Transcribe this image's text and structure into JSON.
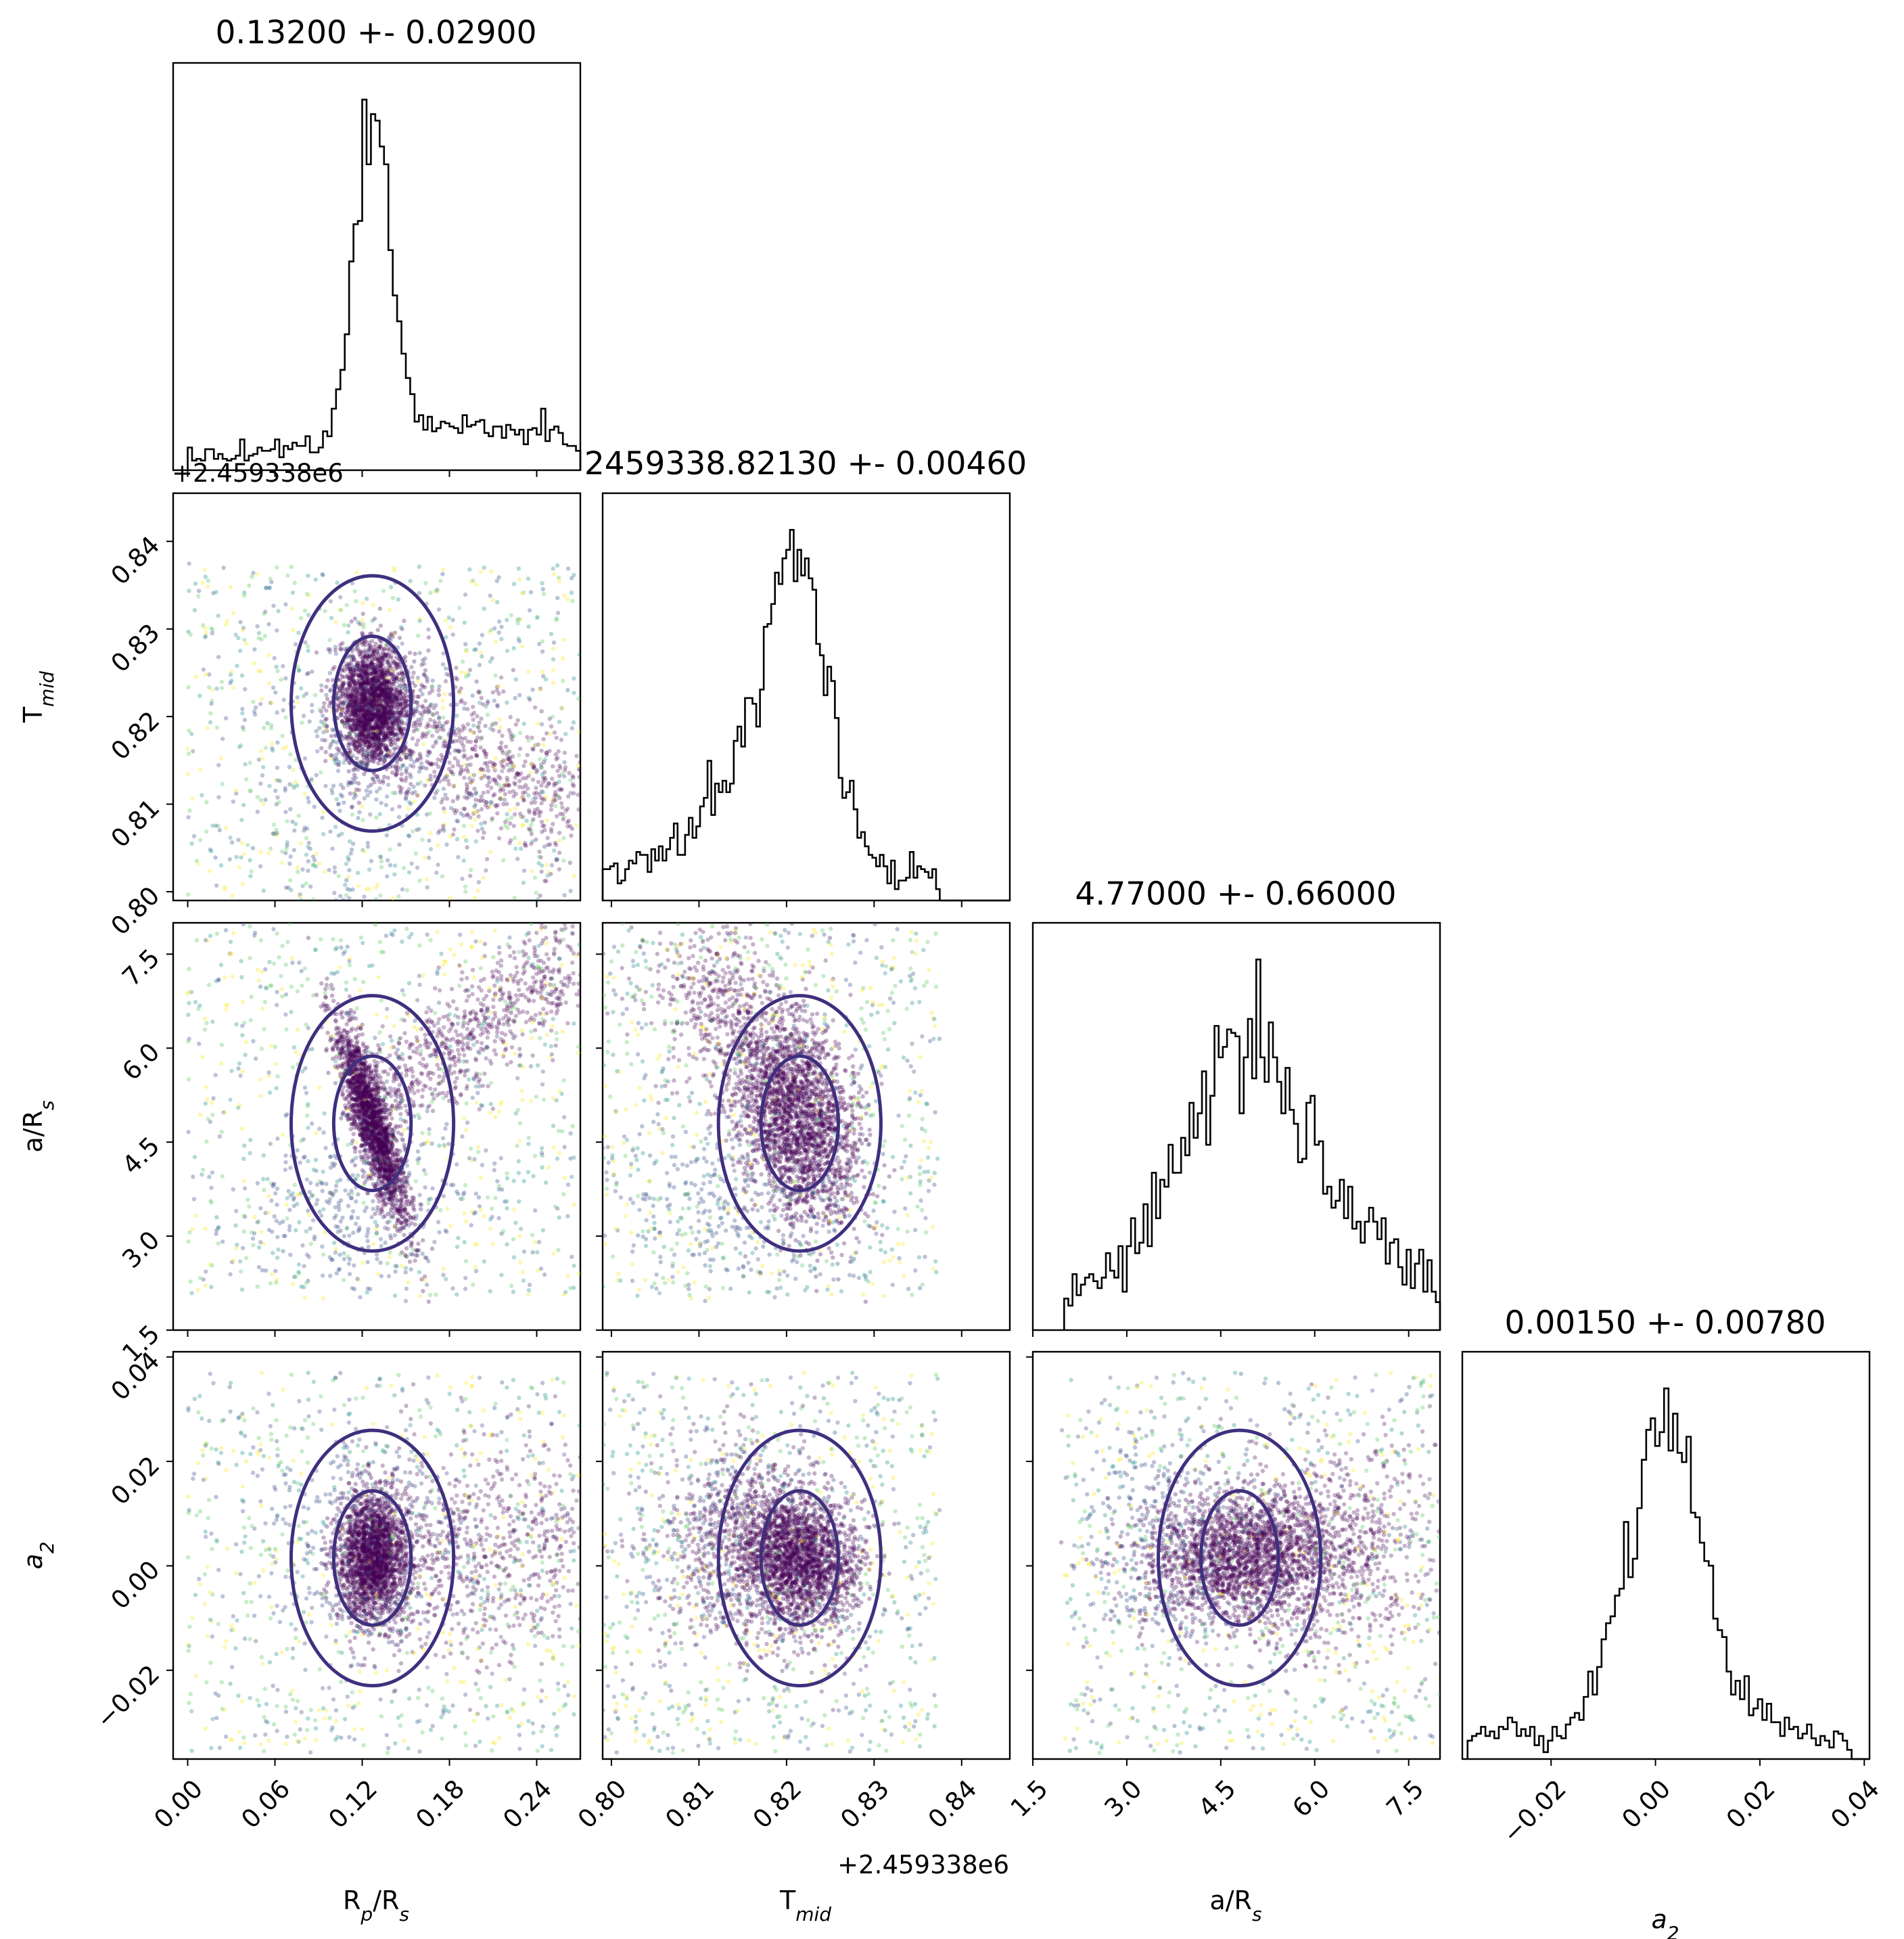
{
  "chart_data": {
    "type": "scatter",
    "subtype": "corner plot",
    "parameters": [
      {
        "key": "rp",
        "label_main": "R",
        "label_sub": "p",
        "label_mid": "/R",
        "label_sub2": "s",
        "range": [
          -0.01,
          0.27
        ],
        "ticks": [
          "0.00",
          "0.06",
          "0.12",
          "0.18",
          "0.24"
        ],
        "tick_values": [
          0.0,
          0.06,
          0.12,
          0.18,
          0.24
        ]
      },
      {
        "key": "tmid",
        "label_main": "T",
        "label_sub": "mid",
        "offset_text": "+2.459338e6",
        "range": [
          0.799,
          0.8455
        ],
        "ticks": [
          "0.80",
          "0.81",
          "0.82",
          "0.83",
          "0.84"
        ],
        "tick_values": [
          0.8,
          0.81,
          0.82,
          0.83,
          0.84
        ]
      },
      {
        "key": "ars",
        "label_main": "a/R",
        "label_sub": "s",
        "range": [
          1.5,
          8.0
        ],
        "ticks": [
          "1.5",
          "3.0",
          "4.5",
          "6.0",
          "7.5"
        ],
        "tick_values": [
          1.5,
          3.0,
          4.5,
          6.0,
          7.5
        ]
      },
      {
        "key": "a2",
        "label_main": "a",
        "label_sub": "2",
        "range": [
          -0.037,
          0.041
        ],
        "ticks": [
          "−0.02",
          "0.00",
          "0.02",
          "0.04"
        ],
        "tick_values": [
          -0.02,
          0.0,
          0.02,
          0.04
        ],
        "y_ticks": [
          "−0.02",
          "0.00",
          "0.02",
          "0.04"
        ]
      }
    ],
    "titles": [
      "0.13200 +- 0.02900",
      "2459338.82130 +- 0.00460",
      "4.77000 +- 0.66000",
      "0.00150 +- 0.00780"
    ],
    "offset_text": "+2.459338e6",
    "estimates": [
      {
        "param": "R_p/R_s",
        "median": 0.132,
        "sigma": 0.029
      },
      {
        "param": "T_mid",
        "median": 2459338.8213,
        "sigma": 0.0046
      },
      {
        "param": "a/R_s",
        "median": 4.77,
        "sigma": 0.66
      },
      {
        "param": "a_2",
        "median": 0.0015,
        "sigma": 0.0078
      }
    ],
    "colors": {
      "contour": "#3f2f7e",
      "dense": "#440154",
      "sparse_1": "#fde725",
      "sparse_2": "#5ec962",
      "sparse_3": "#21918c",
      "sparse_4": "#3b528b"
    },
    "contour_levels": 2,
    "grid": false,
    "legend": "none"
  }
}
